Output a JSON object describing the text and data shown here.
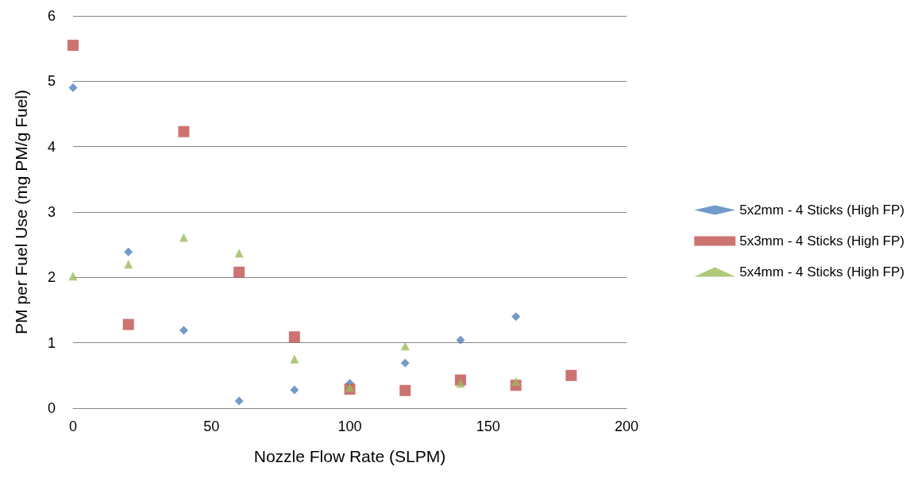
{
  "chart_data": {
    "type": "scatter",
    "xlabel": "Nozzle Flow Rate (SLPM)",
    "ylabel": "PM per Fuel Use (mg PM/g Fuel)",
    "xlim": [
      0,
      200
    ],
    "xticks": [
      0,
      50,
      100,
      150,
      200
    ],
    "ylim": [
      0,
      6
    ],
    "yticks": [
      0,
      1,
      2,
      3,
      4,
      5,
      6
    ],
    "grid": "y",
    "legend": "right",
    "series": [
      {
        "name": "5x2mm - 4 Sticks (High FP)",
        "color": "#4f81bd",
        "marker": "diamond",
        "x": [
          0,
          20,
          40,
          60,
          80,
          100,
          120,
          140,
          160
        ],
        "values": [
          4.9,
          2.39,
          1.19,
          0.11,
          0.28,
          0.38,
          0.69,
          1.04,
          1.4
        ]
      },
      {
        "name": "5x3mm - 4 Sticks (High FP)",
        "color": "#c0504d",
        "marker": "square",
        "x": [
          0,
          20,
          40,
          60,
          80,
          100,
          120,
          140,
          160,
          180
        ],
        "values": [
          5.55,
          1.28,
          4.23,
          2.08,
          1.09,
          0.29,
          0.27,
          0.43,
          0.35,
          0.5
        ]
      },
      {
        "name": "5x4mm - 4 Sticks (High FP)",
        "color": "#9bbb59",
        "marker": "triangle",
        "x": [
          0,
          20,
          40,
          60,
          80,
          100,
          120,
          140,
          160
        ],
        "values": [
          2.02,
          2.2,
          2.61,
          2.37,
          0.75,
          0.32,
          0.95,
          0.38,
          0.41
        ]
      }
    ]
  }
}
